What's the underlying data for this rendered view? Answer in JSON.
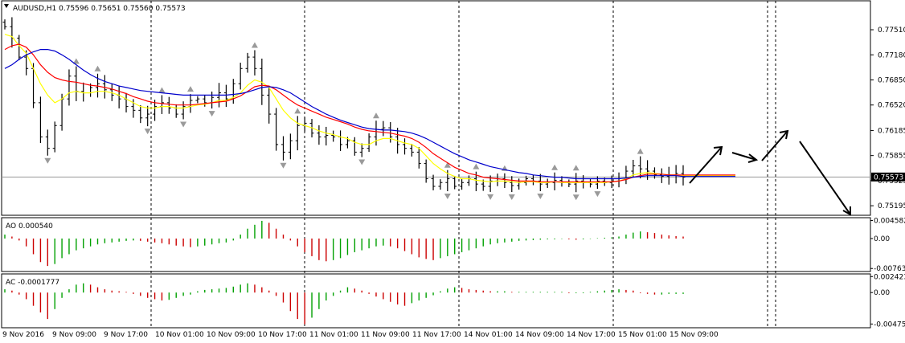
{
  "chart_data": [
    {
      "type": "candlestick",
      "panel": "price",
      "title": "AUDUSD,H1  0.75596 0.75651 0.75560 0.75573",
      "yticks": [
        "0.77510",
        "0.77180",
        "0.76850",
        "0.76520",
        "0.76185",
        "0.75855",
        "0.75525",
        "0.75195"
      ],
      "ytick_values": [
        0.7751,
        0.7718,
        0.7685,
        0.7652,
        0.76185,
        0.75855,
        0.75525,
        0.75195
      ],
      "ylim": [
        0.7508,
        0.7788
      ],
      "current_price": "0.75573",
      "xticks": [
        "9 Nov 2016",
        "9 Nov 09:00",
        "9 Nov 17:00",
        "10 Nov 01:00",
        "10 Nov 09:00",
        "10 Nov 17:00",
        "11 Nov 01:00",
        "11 Nov 09:00",
        "11 Nov 17:00",
        "14 Nov 01:00",
        "14 Nov 09:00",
        "14 Nov 17:00",
        "15 Nov 01:00",
        "15 Nov 09:00"
      ],
      "close_series": [
        0.7755,
        0.774,
        0.7715,
        0.77,
        0.7655,
        0.761,
        0.7595,
        0.7625,
        0.766,
        0.769,
        0.767,
        0.7668,
        0.7675,
        0.768,
        0.7672,
        0.7665,
        0.766,
        0.765,
        0.7645,
        0.7635,
        0.764,
        0.765,
        0.7655,
        0.7648,
        0.764,
        0.765,
        0.7658,
        0.766,
        0.7655,
        0.7662,
        0.7668,
        0.766,
        0.768,
        0.77,
        0.7715,
        0.77,
        0.7665,
        0.764,
        0.76,
        0.759,
        0.7605,
        0.7625,
        0.7628,
        0.7615,
        0.761,
        0.7612,
        0.761,
        0.76,
        0.7605,
        0.759,
        0.7595,
        0.761,
        0.762,
        0.7622,
        0.761,
        0.76,
        0.7595,
        0.759,
        0.7575,
        0.7555,
        0.7545,
        0.755,
        0.7555,
        0.7545,
        0.755,
        0.7555,
        0.7548,
        0.7545,
        0.7552,
        0.7555,
        0.755,
        0.7546,
        0.755,
        0.7555,
        0.7552,
        0.7548,
        0.755,
        0.7553,
        0.755,
        0.7548,
        0.7552,
        0.755,
        0.7548,
        0.7552,
        0.755,
        0.7552,
        0.7555,
        0.7565,
        0.7572,
        0.7568,
        0.7565,
        0.756,
        0.7558,
        0.756,
        0.7562,
        0.7557
      ],
      "series": [
        {
          "name": "",
          "color": "#ffff00",
          "values": [
            0.7745,
            0.7742,
            0.773,
            0.772,
            0.77,
            0.768,
            0.7665,
            0.7655,
            0.766,
            0.7668,
            0.767,
            0.7668,
            0.7668,
            0.767,
            0.767,
            0.7668,
            0.7665,
            0.766,
            0.7655,
            0.765,
            0.7648,
            0.7648,
            0.765,
            0.765,
            0.7648,
            0.7648,
            0.765,
            0.7652,
            0.7653,
            0.7655,
            0.7658,
            0.7658,
            0.7662,
            0.7668,
            0.7678,
            0.7685,
            0.7682,
            0.7675,
            0.766,
            0.7645,
            0.7635,
            0.7628,
            0.7625,
            0.7622,
            0.7618,
            0.7615,
            0.7613,
            0.761,
            0.7608,
            0.7603,
            0.76,
            0.76,
            0.7605,
            0.7608,
            0.7608,
            0.7605,
            0.7602,
            0.76,
            0.7595,
            0.7585,
            0.7575,
            0.7568,
            0.7562,
            0.7558,
            0.7555,
            0.7555,
            0.7553,
            0.7552,
            0.7551,
            0.7552,
            0.7552,
            0.7551,
            0.755,
            0.7551,
            0.7551,
            0.755,
            0.755,
            0.7551,
            0.755,
            0.755,
            0.755,
            0.755,
            0.755,
            0.755,
            0.755,
            0.7551,
            0.7552,
            0.7555,
            0.756,
            0.7562,
            0.7563,
            0.7562,
            0.7561,
            0.756,
            0.756,
            0.7559
          ]
        },
        {
          "name": "",
          "color": "#ff0000",
          "values": [
            0.7725,
            0.773,
            0.7732,
            0.7728,
            0.7718,
            0.7705,
            0.7695,
            0.7688,
            0.7685,
            0.7683,
            0.7682,
            0.768,
            0.7678,
            0.7677,
            0.7675,
            0.7673,
            0.767,
            0.7667,
            0.7663,
            0.766,
            0.7657,
            0.7655,
            0.7654,
            0.7653,
            0.7652,
            0.7652,
            0.7652,
            0.7653,
            0.7654,
            0.7655,
            0.7656,
            0.7657,
            0.766,
            0.7664,
            0.767,
            0.7676,
            0.7678,
            0.7677,
            0.7672,
            0.7665,
            0.7658,
            0.7652,
            0.7648,
            0.7644,
            0.764,
            0.7636,
            0.7633,
            0.763,
            0.7627,
            0.7623,
            0.762,
            0.7618,
            0.7617,
            0.7616,
            0.7615,
            0.7613,
            0.7611,
            0.7608,
            0.7603,
            0.7596,
            0.7588,
            0.7582,
            0.7576,
            0.757,
            0.7566,
            0.7562,
            0.756,
            0.7557,
            0.7556,
            0.7555,
            0.7554,
            0.7553,
            0.7552,
            0.7552,
            0.7552,
            0.7551,
            0.7551,
            0.7551,
            0.7551,
            0.7551,
            0.7551,
            0.7551,
            0.7551,
            0.7551,
            0.7551,
            0.7551,
            0.7552,
            0.7554,
            0.7557,
            0.7559,
            0.7561,
            0.7561,
            0.7561,
            0.756,
            0.756,
            0.756
          ]
        },
        {
          "name": "",
          "color": "#0000cc",
          "values": [
            0.77,
            0.7705,
            0.7712,
            0.7718,
            0.7722,
            0.7725,
            0.7725,
            0.7723,
            0.7718,
            0.7712,
            0.7705,
            0.7698,
            0.7692,
            0.7687,
            0.7683,
            0.768,
            0.7677,
            0.7675,
            0.7673,
            0.7671,
            0.767,
            0.7669,
            0.7668,
            0.7667,
            0.7666,
            0.7665,
            0.7665,
            0.7665,
            0.7665,
            0.7665,
            0.7665,
            0.7665,
            0.7666,
            0.7667,
            0.7669,
            0.7672,
            0.7675,
            0.7676,
            0.7675,
            0.7672,
            0.7668,
            0.7662,
            0.7656,
            0.765,
            0.7645,
            0.764,
            0.7636,
            0.7632,
            0.7629,
            0.7626,
            0.7623,
            0.7621,
            0.762,
            0.7619,
            0.7619,
            0.7618,
            0.7617,
            0.7615,
            0.7612,
            0.7608,
            0.7603,
            0.7598,
            0.7593,
            0.7588,
            0.7584,
            0.758,
            0.7577,
            0.7574,
            0.7571,
            0.7569,
            0.7567,
            0.7565,
            0.7563,
            0.7562,
            0.756,
            0.7559,
            0.7558,
            0.7557,
            0.7557,
            0.7556,
            0.7555,
            0.7555,
            0.7555,
            0.7555,
            0.7555,
            0.7555,
            0.7555,
            0.7556,
            0.7557,
            0.7558,
            0.7559,
            0.7559,
            0.7559,
            0.7559,
            0.7559,
            0.7558
          ]
        }
      ]
    },
    {
      "type": "histogram",
      "panel": "oscillator",
      "title": "AO 0.000540",
      "yticks": [
        "0.004582",
        "0.00",
        "-0.007635"
      ],
      "ytick_values": [
        0.004582,
        0.0,
        -0.007635
      ],
      "ylim": [
        -0.0082,
        0.0051
      ],
      "values": [
        0.001,
        0.0005,
        -0.0005,
        -0.002,
        -0.004,
        -0.006,
        -0.007,
        -0.0065,
        -0.005,
        -0.004,
        -0.003,
        -0.0025,
        -0.002,
        -0.0015,
        -0.0012,
        -0.001,
        -0.0008,
        -0.0006,
        -0.0005,
        -0.0006,
        -0.0008,
        -0.001,
        -0.0012,
        -0.0015,
        -0.0018,
        -0.002,
        -0.0022,
        -0.002,
        -0.0018,
        -0.0015,
        -0.0012,
        -0.001,
        -0.0005,
        0.001,
        0.0025,
        0.0035,
        0.0045,
        0.004,
        0.0025,
        0.001,
        -0.0005,
        -0.002,
        -0.0035,
        -0.0045,
        -0.0055,
        -0.0058,
        -0.0055,
        -0.005,
        -0.0042,
        -0.0035,
        -0.003,
        -0.0025,
        -0.002,
        -0.0018,
        -0.002,
        -0.0025,
        -0.0032,
        -0.004,
        -0.0048,
        -0.0052,
        -0.0055,
        -0.005,
        -0.0045,
        -0.004,
        -0.0035,
        -0.003,
        -0.0025,
        -0.002,
        -0.0015,
        -0.0012,
        -0.001,
        -0.0008,
        -0.0006,
        -0.0005,
        -0.0004,
        -0.0003,
        -0.0002,
        -0.0002,
        -0.0001,
        -0.0002,
        -0.0003,
        -0.0002,
        -0.0001,
        0.0001,
        0.0002,
        0.0003,
        0.0005,
        0.001,
        0.0015,
        0.0018,
        0.0016,
        0.0014,
        0.001,
        0.0008,
        0.0006,
        0.0005
      ]
    },
    {
      "type": "histogram",
      "panel": "oscillator",
      "title": "AC -0.0001777",
      "yticks": [
        "0.002423",
        "0.00",
        "-0.004758"
      ],
      "ytick_values": [
        0.002423,
        0.0,
        -0.004758
      ],
      "ylim": [
        -0.0052,
        0.0027
      ],
      "values": [
        0.0005,
        0.0003,
        -0.0003,
        -0.001,
        -0.002,
        -0.003,
        -0.004,
        -0.0025,
        -0.0008,
        0.0005,
        0.0012,
        0.0014,
        0.0012,
        0.0008,
        0.0005,
        0.0003,
        0.0002,
        0.0001,
        -0.0002,
        -0.0005,
        -0.0008,
        -0.001,
        -0.0012,
        -0.0011,
        -0.0008,
        -0.0005,
        -0.0003,
        0.0002,
        0.0004,
        0.0005,
        0.0006,
        0.0007,
        0.0009,
        0.0012,
        0.0014,
        0.0012,
        0.0008,
        0.0003,
        -0.0005,
        -0.0015,
        -0.0028,
        -0.004,
        -0.0048,
        -0.0038,
        -0.0025,
        -0.0012,
        -0.0005,
        0.0003,
        0.0008,
        0.0006,
        0.0003,
        -0.0002,
        -0.0006,
        -0.001,
        -0.0014,
        -0.0018,
        -0.002,
        -0.0016,
        -0.0012,
        -0.0008,
        -0.0004,
        0.0002,
        0.0006,
        0.0008,
        0.0007,
        0.0005,
        0.0004,
        0.0003,
        0.0002,
        0.0002,
        0.0002,
        0.0001,
        0.0001,
        0.0001,
        0.0001,
        0.0001,
        0.0001,
        0.0001,
        0.0001,
        -0.0001,
        -0.0001,
        -0.0001,
        0.0001,
        0.0002,
        0.0003,
        0.0004,
        0.0005,
        0.0004,
        0.0003,
        -0.0001,
        -0.0002,
        -0.0003,
        -0.0003,
        -0.0002,
        -0.0002,
        -0.0002
      ]
    }
  ],
  "colors": {
    "background": "#ffffff",
    "axis": "#000000",
    "grid_dash": "#000000",
    "candle": "#000000",
    "up_bar": "#00a000",
    "down_bar": "#cc0000",
    "fractal": "#9a9a9a",
    "price_label_bg": "#000000",
    "price_label_fg": "#ffffff"
  }
}
